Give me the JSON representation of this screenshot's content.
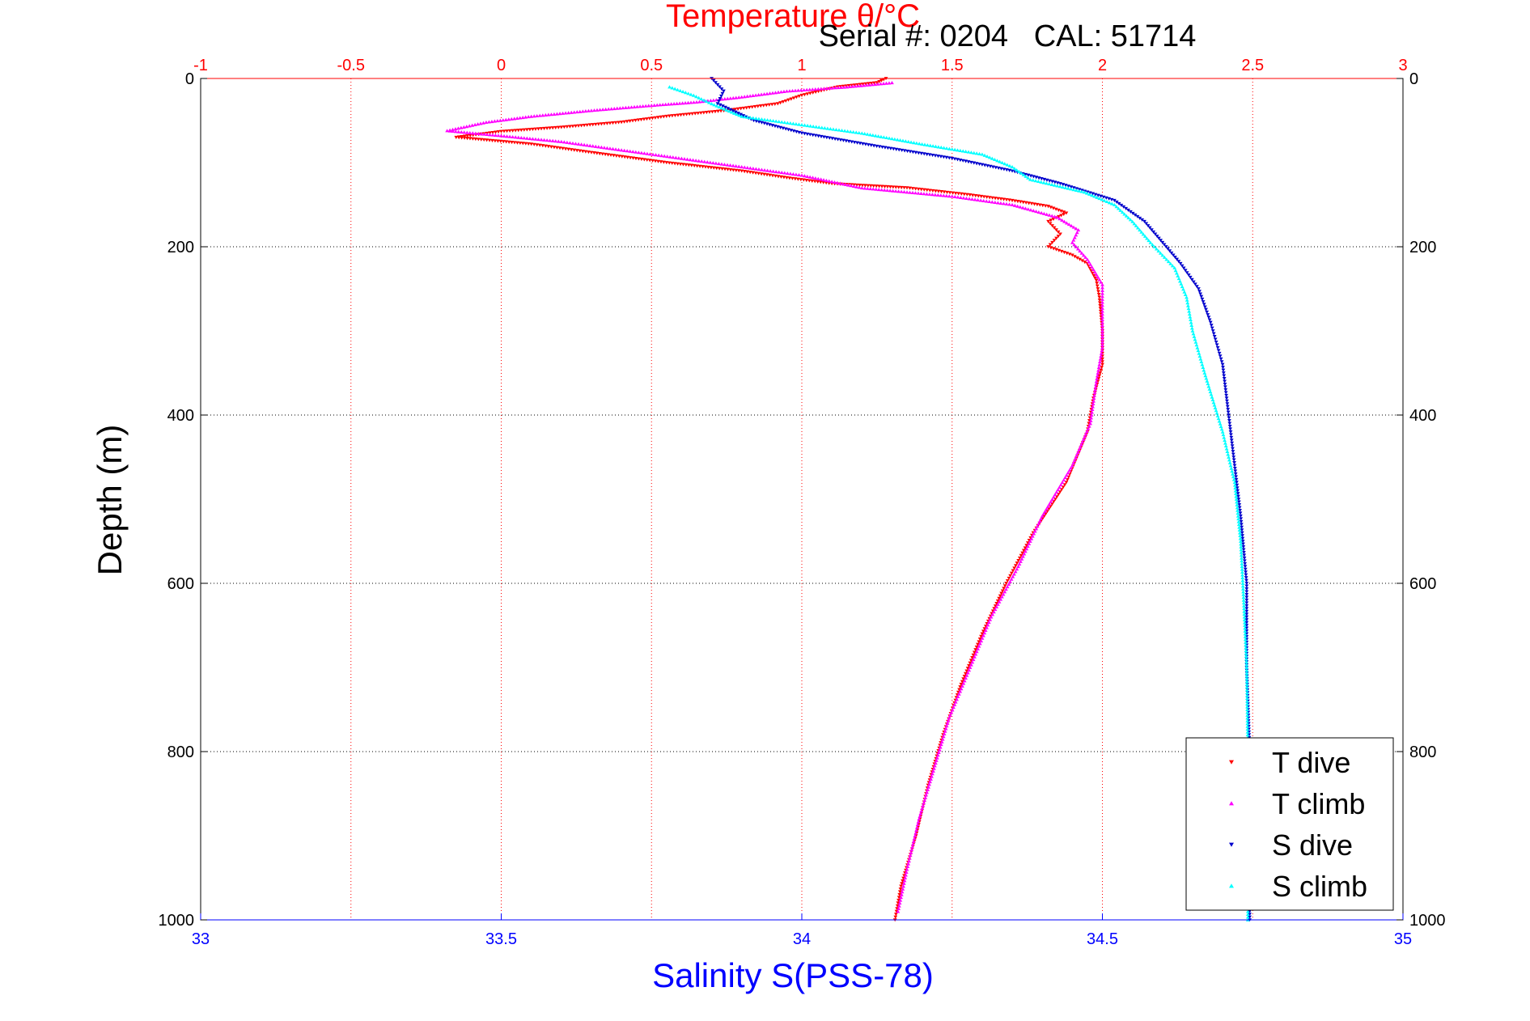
{
  "chart_data": {
    "type": "scatter",
    "title_top": "Temperature θ/°C",
    "annotation": "Serial #: 0204   CAL: 51714",
    "xlabel_bottom": "Salinity S(PSS-78)",
    "ylabel": "Depth (m)",
    "x_bottom": {
      "lim": [
        33,
        35
      ],
      "ticks": [
        "33",
        "33.5",
        "34",
        "34.5",
        "35"
      ]
    },
    "x_top": {
      "lim": [
        -1,
        3
      ],
      "ticks": [
        "-1",
        "-0.5",
        "0",
        "0.5",
        "1",
        "1.5",
        "2",
        "2.5",
        "3"
      ]
    },
    "y": {
      "lim": [
        0,
        1000
      ],
      "reversed": true,
      "ticks": [
        "0",
        "200",
        "400",
        "600",
        "800",
        "1000"
      ]
    },
    "grid": true,
    "legend_position": "bottom-right",
    "series": [
      {
        "name": "T dive",
        "axis": "top",
        "color": "#ff0000",
        "marker": "triangle-down",
        "points": [
          [
            1.28,
            0
          ],
          [
            1.25,
            5
          ],
          [
            1.12,
            10
          ],
          [
            1.0,
            20
          ],
          [
            0.92,
            30
          ],
          [
            0.75,
            38
          ],
          [
            0.55,
            45
          ],
          [
            0.4,
            52
          ],
          [
            0.2,
            58
          ],
          [
            0.0,
            63
          ],
          [
            -0.15,
            70
          ],
          [
            0.1,
            78
          ],
          [
            0.3,
            88
          ],
          [
            0.55,
            100
          ],
          [
            0.8,
            110
          ],
          [
            0.95,
            118
          ],
          [
            1.1,
            125
          ],
          [
            1.35,
            130
          ],
          [
            1.55,
            138
          ],
          [
            1.7,
            145
          ],
          [
            1.82,
            152
          ],
          [
            1.88,
            160
          ],
          [
            1.82,
            170
          ],
          [
            1.86,
            185
          ],
          [
            1.82,
            200
          ],
          [
            1.9,
            210
          ],
          [
            1.95,
            220
          ],
          [
            1.98,
            240
          ],
          [
            1.99,
            260
          ],
          [
            2.0,
            300
          ],
          [
            2.0,
            340
          ],
          [
            1.97,
            380
          ],
          [
            1.95,
            420
          ],
          [
            1.88,
            480
          ],
          [
            1.77,
            540
          ],
          [
            1.68,
            600
          ],
          [
            1.6,
            660
          ],
          [
            1.53,
            720
          ],
          [
            1.47,
            780
          ],
          [
            1.42,
            840
          ],
          [
            1.38,
            900
          ],
          [
            1.33,
            960
          ],
          [
            1.31,
            1000
          ]
        ]
      },
      {
        "name": "T climb",
        "axis": "top",
        "color": "#ff00ff",
        "marker": "triangle-up",
        "points": [
          [
            1.3,
            5
          ],
          [
            1.15,
            10
          ],
          [
            0.95,
            15
          ],
          [
            0.8,
            22
          ],
          [
            0.65,
            28
          ],
          [
            0.5,
            32
          ],
          [
            0.3,
            38
          ],
          [
            0.1,
            45
          ],
          [
            -0.05,
            52
          ],
          [
            -0.18,
            62
          ],
          [
            0.0,
            68
          ],
          [
            0.2,
            75
          ],
          [
            0.4,
            85
          ],
          [
            0.6,
            95
          ],
          [
            0.8,
            105
          ],
          [
            1.0,
            115
          ],
          [
            1.2,
            130
          ],
          [
            1.5,
            140
          ],
          [
            1.7,
            150
          ],
          [
            1.85,
            165
          ],
          [
            1.92,
            180
          ],
          [
            1.9,
            195
          ],
          [
            1.95,
            215
          ],
          [
            2.0,
            245
          ],
          [
            2.0,
            280
          ],
          [
            2.0,
            320
          ],
          [
            1.98,
            360
          ],
          [
            1.96,
            410
          ],
          [
            1.9,
            460
          ],
          [
            1.8,
            520
          ],
          [
            1.72,
            580
          ],
          [
            1.63,
            640
          ],
          [
            1.56,
            700
          ],
          [
            1.49,
            760
          ],
          [
            1.44,
            820
          ],
          [
            1.39,
            880
          ],
          [
            1.35,
            940
          ],
          [
            1.32,
            990
          ]
        ]
      },
      {
        "name": "S dive",
        "axis": "bottom",
        "color": "#0000cc",
        "marker": "triangle-down",
        "points": [
          [
            33.85,
            0
          ],
          [
            33.87,
            15
          ],
          [
            33.86,
            30
          ],
          [
            33.92,
            50
          ],
          [
            34.0,
            65
          ],
          [
            34.12,
            80
          ],
          [
            34.25,
            95
          ],
          [
            34.35,
            110
          ],
          [
            34.43,
            125
          ],
          [
            34.52,
            145
          ],
          [
            34.57,
            170
          ],
          [
            34.6,
            195
          ],
          [
            34.63,
            220
          ],
          [
            34.66,
            250
          ],
          [
            34.68,
            290
          ],
          [
            34.7,
            340
          ],
          [
            34.71,
            400
          ],
          [
            34.72,
            460
          ],
          [
            34.73,
            520
          ],
          [
            34.74,
            600
          ],
          [
            34.74,
            700
          ],
          [
            34.745,
            800
          ],
          [
            34.745,
            900
          ],
          [
            34.745,
            1000
          ]
        ]
      },
      {
        "name": "S climb",
        "axis": "bottom",
        "color": "#00ffff",
        "marker": "triangle-up",
        "points": [
          [
            33.78,
            10
          ],
          [
            33.82,
            20
          ],
          [
            33.85,
            30
          ],
          [
            33.9,
            45
          ],
          [
            34.0,
            55
          ],
          [
            34.1,
            65
          ],
          [
            34.2,
            78
          ],
          [
            34.3,
            90
          ],
          [
            34.35,
            105
          ],
          [
            34.38,
            120
          ],
          [
            34.47,
            135
          ],
          [
            34.52,
            150
          ],
          [
            34.55,
            170
          ],
          [
            34.58,
            195
          ],
          [
            34.62,
            225
          ],
          [
            34.64,
            260
          ],
          [
            34.65,
            300
          ],
          [
            34.67,
            350
          ],
          [
            34.7,
            420
          ],
          [
            34.72,
            480
          ],
          [
            34.73,
            550
          ],
          [
            34.735,
            620
          ],
          [
            34.74,
            700
          ],
          [
            34.742,
            800
          ],
          [
            34.742,
            900
          ],
          [
            34.742,
            1000
          ]
        ]
      }
    ]
  }
}
